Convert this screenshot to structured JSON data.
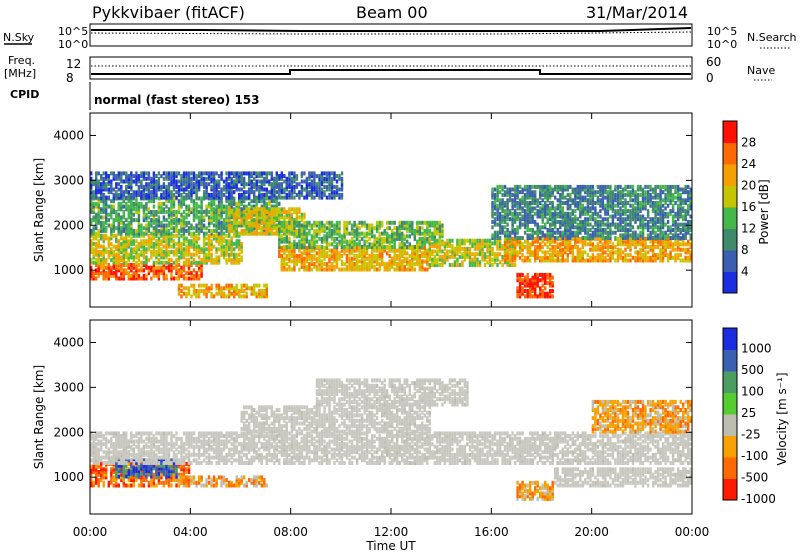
{
  "header": {
    "station": "Pykkvibaer (fitACF)",
    "beam": "Beam 00",
    "date": "31/Mar/2014"
  },
  "sky_panel": {
    "left_label": "N.Sky",
    "right_label": "N.Search",
    "right_tick_top": "10^5",
    "right_tick_bottom": "10^0",
    "left_tick_top": "10^5",
    "left_tick_bottom": "10^0"
  },
  "freq_panel": {
    "left_label_1": "Freq.",
    "left_label_2": "[MHz]",
    "left_tick_top": "12",
    "left_tick_bottom": "8",
    "right_label": "Nave",
    "right_tick_top": "60",
    "right_tick_bottom": "0"
  },
  "cpid_panel": {
    "label": "CPID",
    "mode_text": "normal (fast stereo) 153"
  },
  "chart_data": [
    {
      "type": "heatmap",
      "name_of_quantity": "Power",
      "ylabel": "Slant Range [km]",
      "ylim": [
        180,
        4500
      ],
      "yticks": [
        "1000",
        "2000",
        "3000",
        "4000"
      ],
      "ytick_values": [
        1000,
        2000,
        3000,
        4000
      ],
      "colorbar_label": "Power [dB]",
      "colorbar_ticks": [
        "4",
        "8",
        "12",
        "16",
        "20",
        "24",
        "28"
      ],
      "colorbar_values": [
        4,
        8,
        12,
        16,
        20,
        24,
        28
      ],
      "colorbar_range": [
        0,
        32
      ],
      "colorbar_colors": [
        "#1a2ee0",
        "#3a5fb0",
        "#3f8a6a",
        "#44b848",
        "#c6c600",
        "#f4a000",
        "#ff6a00",
        "#ff1000"
      ],
      "bands": [
        {
          "t0": 0.0,
          "t1": 4.5,
          "r0": 800,
          "r1": 1150,
          "level": 27
        },
        {
          "t0": 0.0,
          "t1": 6.0,
          "r0": 1150,
          "r1": 1800,
          "level": 18
        },
        {
          "t0": 0.0,
          "t1": 7.5,
          "r0": 1800,
          "r1": 2600,
          "level": 12
        },
        {
          "t0": 0.0,
          "t1": 10.0,
          "r0": 2600,
          "r1": 3200,
          "level": 6
        },
        {
          "t0": 5.5,
          "t1": 8.5,
          "r0": 1800,
          "r1": 2400,
          "level": 19
        },
        {
          "t0": 3.5,
          "t1": 7.0,
          "r0": 400,
          "r1": 700,
          "level": 22
        },
        {
          "t0": 7.5,
          "t1": 13.5,
          "r0": 1000,
          "r1": 1500,
          "level": 21
        },
        {
          "t0": 7.5,
          "t1": 14.0,
          "r0": 1500,
          "r1": 2100,
          "level": 14
        },
        {
          "t0": 13.5,
          "t1": 17.0,
          "r0": 1100,
          "r1": 1700,
          "level": 18
        },
        {
          "t0": 16.5,
          "t1": 24.0,
          "r0": 1200,
          "r1": 1700,
          "level": 22
        },
        {
          "t0": 17.0,
          "t1": 18.5,
          "r0": 400,
          "r1": 900,
          "level": 29
        },
        {
          "t0": 16.0,
          "t1": 24.0,
          "r0": 1700,
          "r1": 2900,
          "level": 9
        }
      ]
    },
    {
      "type": "heatmap",
      "name_of_quantity": "Velocity",
      "ylabel": "Slant Range [km]",
      "ylim": [
        180,
        4500
      ],
      "yticks": [
        "1000",
        "2000",
        "3000",
        "4000"
      ],
      "ytick_values": [
        1000,
        2000,
        3000,
        4000
      ],
      "colorbar_label": "Velocity [m s⁻¹]",
      "colorbar_ticks": [
        "1000",
        "500",
        "100",
        "25",
        "-25",
        "-100",
        "-500",
        "-1000"
      ],
      "colorbar_colors": [
        "#1a2ee0",
        "#3a60b4",
        "#4a9f60",
        "#55cc30",
        "#bebeb0",
        "#f7a000",
        "#ff6a00",
        "#ff1a00"
      ],
      "ground_scatter_color": "#c8c8c0",
      "bands": [
        {
          "t0": 0.0,
          "t1": 4.0,
          "r0": 800,
          "r1": 1300,
          "level": "-500"
        },
        {
          "t0": 1.0,
          "t1": 3.5,
          "r0": 1000,
          "r1": 1400,
          "level": "500"
        },
        {
          "t0": 3.5,
          "t1": 7.0,
          "r0": 800,
          "r1": 1000,
          "level": "-100"
        },
        {
          "t0": 0.0,
          "t1": 24.0,
          "r0": 1300,
          "r1": 2000,
          "level": "ground"
        },
        {
          "t0": 6.0,
          "t1": 13.5,
          "r0": 2000,
          "r1": 2600,
          "level": "ground"
        },
        {
          "t0": 9.0,
          "t1": 15.0,
          "r0": 2600,
          "r1": 3200,
          "level": "ground"
        },
        {
          "t0": 17.0,
          "t1": 18.5,
          "r0": 500,
          "r1": 900,
          "level": "-100"
        },
        {
          "t0": 18.5,
          "t1": 24.0,
          "r0": 800,
          "r1": 1200,
          "level": "ground"
        },
        {
          "t0": 20.0,
          "t1": 24.0,
          "r0": 2000,
          "r1": 2700,
          "level": "-100"
        }
      ]
    }
  ],
  "time_axis": {
    "xlabel": "Time UT",
    "xlim": [
      0,
      24
    ],
    "tick_values": [
      0,
      4,
      8,
      12,
      16,
      20,
      24
    ],
    "tick_labels": [
      "00:00",
      "04:00",
      "08:00",
      "12:00",
      "16:00",
      "20:00",
      "00:00"
    ]
  }
}
